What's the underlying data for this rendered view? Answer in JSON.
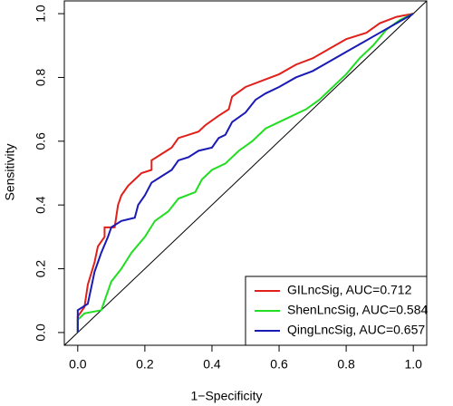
{
  "chart_data": {
    "type": "line",
    "xlabel": "1−Specificity",
    "ylabel": "Sensitivity",
    "xlim": [
      -0.04,
      1.04
    ],
    "ylim": [
      -0.04,
      1.04
    ],
    "xticks": [
      {
        "value": 0,
        "label": "0.0"
      },
      0.2,
      0.4,
      0.6,
      0.8,
      {
        "value": 1,
        "label": "1.0"
      }
    ],
    "yticks": [
      {
        "value": 0,
        "label": "0.0"
      },
      0.2,
      0.4,
      0.6,
      0.8,
      {
        "value": 1,
        "label": "1.0"
      }
    ],
    "diagonal": true,
    "legend": "bottomright",
    "series": [
      {
        "name": "GILncSig, AUC=0.712",
        "color": "#e0201b",
        "x": [
          0,
          0,
          0.02,
          0.03,
          0.05,
          0.06,
          0.08,
          0.08,
          0.11,
          0.12,
          0.13,
          0.15,
          0.17,
          0.19,
          0.22,
          0.22,
          0.25,
          0.28,
          0.3,
          0.33,
          0.36,
          0.38,
          0.42,
          0.45,
          0.46,
          0.5,
          0.55,
          0.6,
          0.65,
          0.7,
          0.75,
          0.8,
          0.86,
          0.9,
          0.95,
          1
        ],
        "values": [
          0,
          0.05,
          0.08,
          0.15,
          0.22,
          0.27,
          0.3,
          0.33,
          0.33,
          0.4,
          0.43,
          0.46,
          0.48,
          0.5,
          0.51,
          0.54,
          0.56,
          0.58,
          0.61,
          0.62,
          0.63,
          0.65,
          0.68,
          0.7,
          0.74,
          0.77,
          0.79,
          0.81,
          0.84,
          0.86,
          0.89,
          0.92,
          0.94,
          0.97,
          0.99,
          1
        ]
      },
      {
        "name": "ShenLncSig, AUC=0.584",
        "color": "#22dd22",
        "x": [
          0,
          0,
          0.02,
          0.07,
          0.08,
          0.1,
          0.13,
          0.16,
          0.2,
          0.23,
          0.27,
          0.3,
          0.35,
          0.37,
          0.4,
          0.44,
          0.48,
          0.52,
          0.56,
          0.62,
          0.68,
          0.72,
          0.76,
          0.8,
          0.84,
          0.88,
          0.92,
          0.96,
          1
        ],
        "values": [
          0,
          0.04,
          0.06,
          0.07,
          0.1,
          0.16,
          0.2,
          0.25,
          0.3,
          0.35,
          0.38,
          0.42,
          0.44,
          0.48,
          0.51,
          0.53,
          0.57,
          0.6,
          0.64,
          0.67,
          0.7,
          0.73,
          0.77,
          0.81,
          0.86,
          0.9,
          0.95,
          0.98,
          1
        ]
      },
      {
        "name": "QingLncSig, AUC=0.657",
        "color": "#1a1ab5",
        "x": [
          0,
          0,
          0.03,
          0.04,
          0.05,
          0.06,
          0.07,
          0.09,
          0.1,
          0.13,
          0.17,
          0.18,
          0.2,
          0.22,
          0.25,
          0.28,
          0.3,
          0.33,
          0.36,
          0.4,
          0.42,
          0.44,
          0.46,
          0.5,
          0.53,
          0.56,
          0.6,
          0.65,
          0.7,
          0.75,
          0.8,
          0.85,
          0.9,
          0.95,
          1
        ],
        "values": [
          0,
          0.07,
          0.09,
          0.14,
          0.19,
          0.22,
          0.25,
          0.3,
          0.33,
          0.35,
          0.36,
          0.4,
          0.43,
          0.47,
          0.49,
          0.51,
          0.54,
          0.55,
          0.57,
          0.58,
          0.61,
          0.62,
          0.66,
          0.69,
          0.73,
          0.75,
          0.77,
          0.8,
          0.82,
          0.85,
          0.88,
          0.91,
          0.94,
          0.97,
          1
        ]
      }
    ]
  }
}
